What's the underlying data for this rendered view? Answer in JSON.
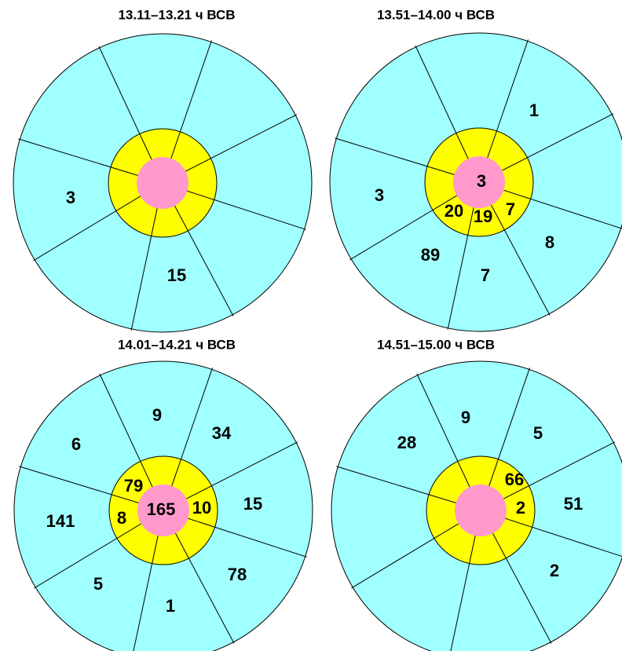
{
  "panels": [
    {
      "title": "13.11–13.21 ч ВСВ",
      "labels": [
        3,
        15
      ]
    },
    {
      "title": "13.51–14.00 ч ВСВ",
      "labels": [
        1,
        3,
        3,
        20,
        19,
        7,
        8,
        89,
        7
      ]
    },
    {
      "title": "14.01–14.21 ч ВСВ",
      "labels": [
        9,
        34,
        6,
        79,
        8,
        165,
        10,
        15,
        141,
        78,
        5,
        1
      ]
    },
    {
      "title": "14.51–15.00 ч ВСВ",
      "labels": [
        9,
        5,
        28,
        66,
        2,
        51,
        2
      ]
    }
  ]
}
